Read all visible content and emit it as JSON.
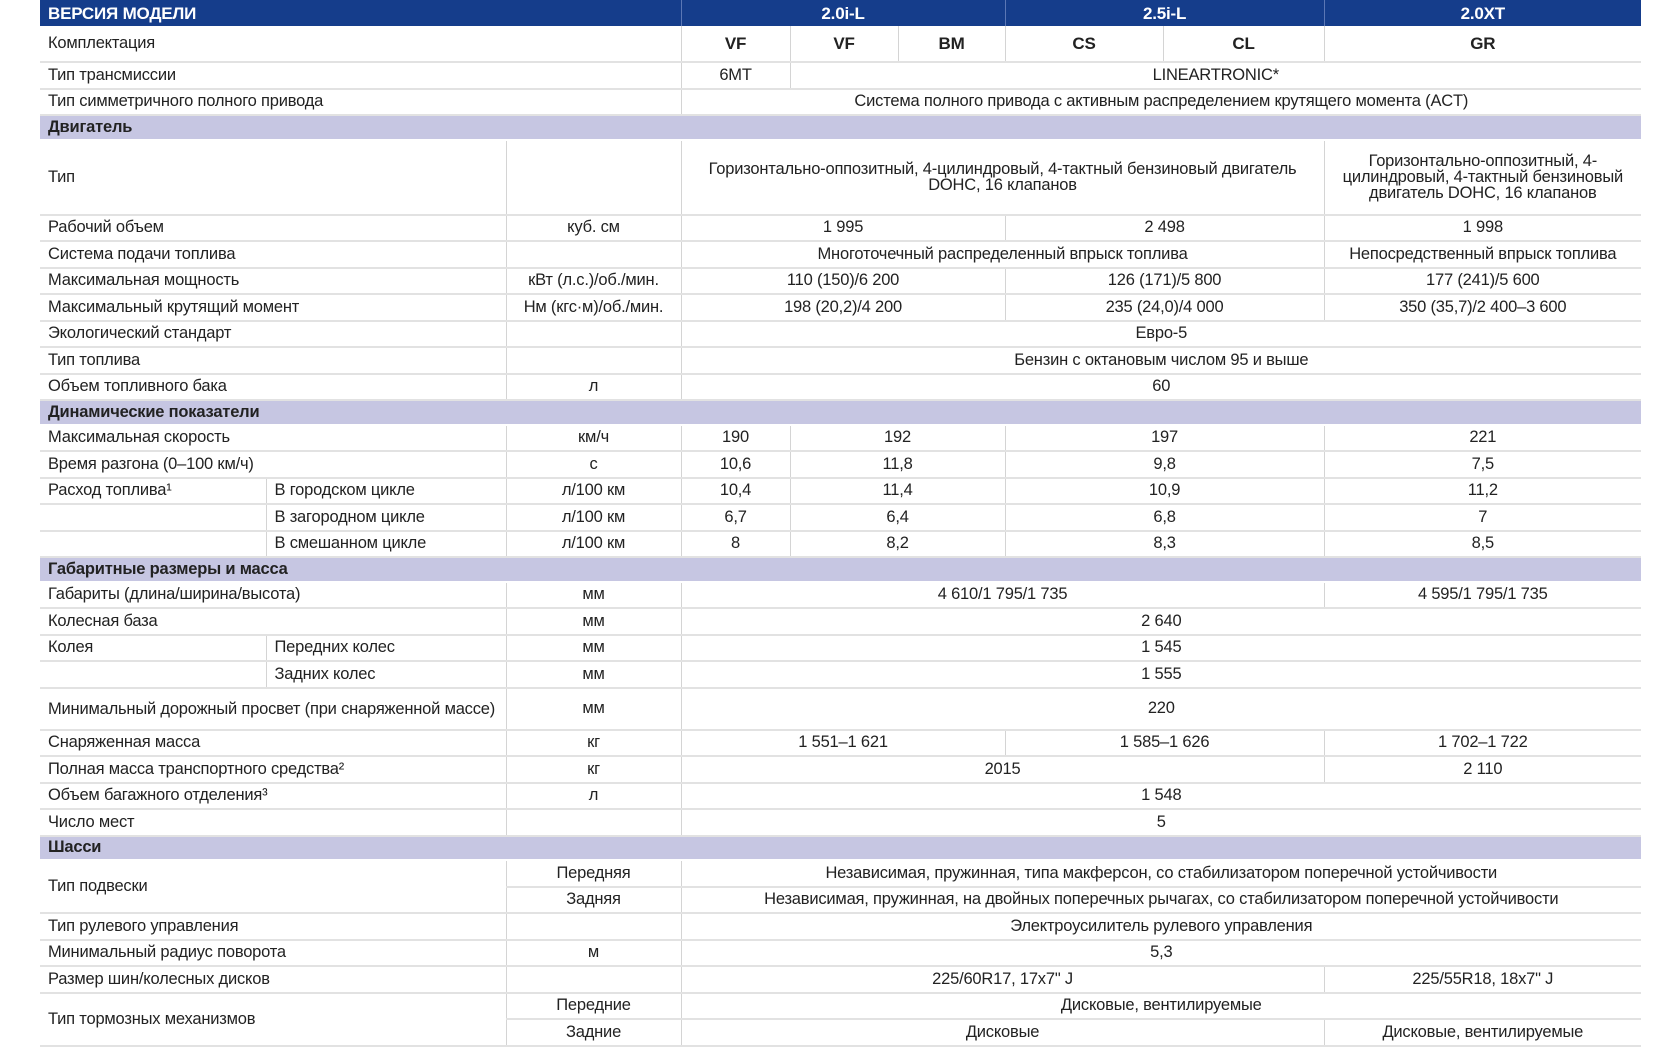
{
  "header": {
    "title": "ВЕРСИЯ МОДЕЛИ",
    "models": [
      "2.0i-L",
      "2.5i-L",
      "2.0XT"
    ]
  },
  "trims": {
    "label": "Комплектация",
    "values": [
      "VF",
      "VF",
      "BM",
      "CS",
      "CL",
      "GR"
    ]
  },
  "colors": {
    "header_bg": "#153d8b",
    "section_bg": "#c6c6e2"
  },
  "rows": [
    {
      "label": "Тип трансмиссии",
      "values": [
        "6MT",
        "LINEARTRONIC*"
      ]
    },
    {
      "label": "Тип симметричного полного привода",
      "values": [
        "Система полного привода с активным распределением крутящего момента (ACT)"
      ]
    },
    {
      "section": "Двигатель"
    },
    {
      "label": "Тип",
      "unit": "",
      "values": [
        "Горизонтально-оппозитный, 4-цилиндровый, 4-тактный бензиновый двигатель DOHC, 16 клапанов",
        "Горизонтально-оппозитный, 4-цилиндровый, 4-тактный бензиновый двигатель DOHC, 16 клапанов"
      ]
    },
    {
      "label": "Рабочий объем",
      "unit": "куб. см",
      "values": [
        "1 995",
        "2 498",
        "1 998"
      ]
    },
    {
      "label": "Система подачи топлива",
      "unit": "",
      "values": [
        "Многоточечный распределенный впрыск топлива",
        "Непосредственный впрыск топлива"
      ]
    },
    {
      "label": "Максимальная мощность",
      "unit": "кВт (л.с.)/об./мин.",
      "values": [
        "110 (150)/6 200",
        "126 (171)/5 800",
        "177 (241)/5 600"
      ]
    },
    {
      "label": "Максимальный крутящий момент",
      "unit": "Нм (кгс·м)/об./мин.",
      "values": [
        "198 (20,2)/4 200",
        "235 (24,0)/4 000",
        "350 (35,7)/2 400–3 600"
      ]
    },
    {
      "label": "Экологический стандарт",
      "unit": "",
      "values": [
        "Евро-5"
      ]
    },
    {
      "label": "Тип топлива",
      "unit": "",
      "values": [
        "Бензин с октановым числом 95 и выше"
      ]
    },
    {
      "label": "Объем топливного бака",
      "unit": "л",
      "values": [
        "60"
      ]
    },
    {
      "section": "Динамические показатели"
    },
    {
      "label": "Максимальная скорость",
      "unit": "км/ч",
      "values": [
        "190",
        "192",
        "197",
        "221"
      ]
    },
    {
      "label": "Время разгона (0–100 км/ч)",
      "unit": "с",
      "values": [
        "10,6",
        "11,8",
        "9,8",
        "7,5"
      ]
    },
    {
      "label": "Расход топлива¹",
      "sub": "В городском цикле",
      "unit": "л/100 км",
      "values": [
        "10,4",
        "11,4",
        "10,9",
        "11,2"
      ]
    },
    {
      "label": "",
      "sub": "В загородном цикле",
      "unit": "л/100 км",
      "values": [
        "6,7",
        "6,4",
        "6,8",
        "7"
      ]
    },
    {
      "label": "",
      "sub": "В смешанном цикле",
      "unit": "л/100 км",
      "values": [
        "8",
        "8,2",
        "8,3",
        "8,5"
      ]
    },
    {
      "section": "Габаритные размеры и масса"
    },
    {
      "label": "Габариты (длина/ширина/высота)",
      "unit": "мм",
      "values": [
        "4 610/1 795/1 735",
        "4 595/1 795/1 735"
      ]
    },
    {
      "label": "Колесная база",
      "unit": "мм",
      "values": [
        "2 640"
      ]
    },
    {
      "label": "Колея",
      "sub": "Передних колес",
      "unit": "мм",
      "values": [
        "1 545"
      ]
    },
    {
      "label": "",
      "sub": "Задних колес",
      "unit": "мм",
      "values": [
        "1 555"
      ]
    },
    {
      "label": "Минимальный дорожный просвет (при снаряженной массе)",
      "unit": "мм",
      "values": [
        "220"
      ]
    },
    {
      "label": "Снаряженная масса",
      "unit": "кг",
      "values": [
        "1 551–1 621",
        "1 585–1 626",
        "1 702–1 722"
      ]
    },
    {
      "label": "Полная масса транспортного средства²",
      "unit": "кг",
      "values": [
        "2015",
        "2 110"
      ]
    },
    {
      "label": "Объем багажного отделения³",
      "unit": "л",
      "values": [
        "1 548"
      ]
    },
    {
      "label": "Число  мест",
      "unit": "",
      "values": [
        "5"
      ]
    },
    {
      "section": "Шасси"
    },
    {
      "label": "Тип подвески",
      "unit": "Передняя",
      "values": [
        "Независимая, пружинная, типа макферсон, со стабилизатором поперечной устойчивости"
      ]
    },
    {
      "unit": "Задняя",
      "values": [
        "Независимая, пружинная, на двойных поперечных рычагах, со стабилизатором поперечной устойчивости"
      ]
    },
    {
      "label": "Тип рулевого управления",
      "unit": "",
      "values": [
        "Электроусилитель рулевого управления"
      ]
    },
    {
      "label": "Минимальный радиус поворота",
      "unit": "м",
      "values": [
        "5,3"
      ]
    },
    {
      "label": "Размер шин/колесных дисков",
      "unit": "",
      "values": [
        "225/60R17, 17x7\" J",
        "225/55R18, 18x7\" J"
      ]
    },
    {
      "label": "Тип тормозных механизмов",
      "unit": "Передние",
      "values": [
        "Дисковые, вентилируемые"
      ]
    },
    {
      "unit": "Задние",
      "values": [
        "Дисковые",
        "Дисковые, вентилируемые"
      ]
    }
  ]
}
